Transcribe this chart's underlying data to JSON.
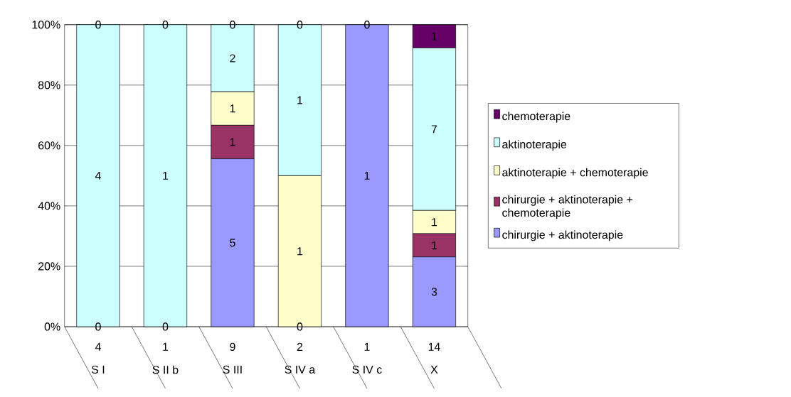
{
  "chart_data": {
    "type": "bar",
    "stacked": true,
    "categories": [
      "S I",
      "S II b",
      "S III",
      "S IV a",
      "S IV c",
      "X"
    ],
    "series": [
      {
        "name": "chirurgie + aktinoterapie",
        "color": "#9999ff",
        "values": [
          0,
          0,
          55.6,
          0,
          100,
          23.1
        ]
      },
      {
        "name": "chirurgie + aktinoterapie + chemoterapie",
        "color": "#993366",
        "values": [
          0,
          0,
          11.1,
          0,
          0,
          7.7
        ]
      },
      {
        "name": "aktinoterapie + chemoterapie",
        "color": "#ffffcc",
        "values": [
          0,
          0,
          11.1,
          50,
          0,
          7.7
        ]
      },
      {
        "name": "aktinoterapie",
        "color": "#ccffff",
        "values": [
          100,
          100,
          22.2,
          50,
          0,
          53.8
        ]
      },
      {
        "name": "chemoterapie",
        "color": "#660066",
        "values": [
          0,
          0,
          0,
          0,
          0,
          7.7
        ]
      }
    ],
    "annotations": [
      "0",
      "4",
      "0",
      "0",
      "1",
      "0",
      "5",
      "1",
      "1",
      "2",
      "0",
      "0",
      "1",
      "1",
      "0",
      "1",
      "0",
      "3",
      "1",
      "1",
      "7",
      "1",
      "4",
      "1",
      "9",
      "2",
      "1",
      "14"
    ],
    "ylim": [
      0,
      100
    ],
    "yticks": [
      {
        "value": 0,
        "label": "0%"
      },
      {
        "value": 20,
        "label": "20%"
      },
      {
        "value": 40,
        "label": "40%"
      },
      {
        "value": 60,
        "label": "60%"
      },
      {
        "value": 80,
        "label": "80%"
      },
      {
        "value": 100,
        "label": "100%"
      }
    ],
    "grid": "y",
    "legend": "right"
  }
}
